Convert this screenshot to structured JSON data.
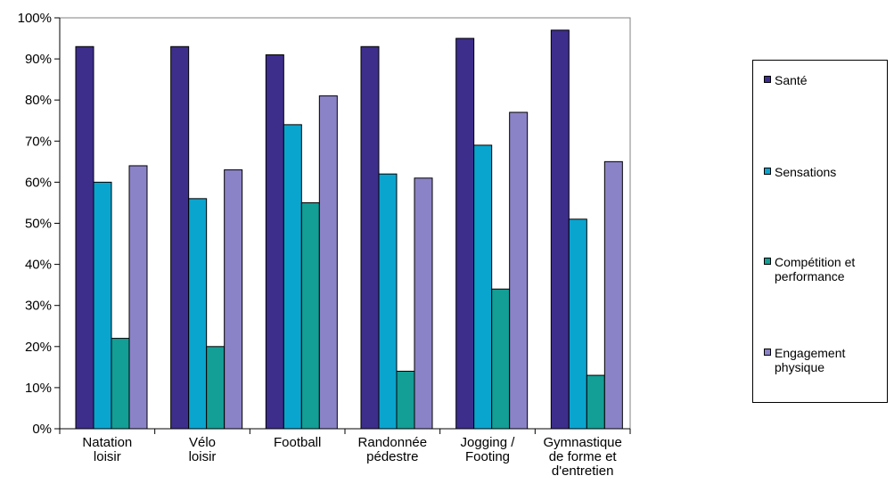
{
  "chart_data": {
    "type": "bar",
    "categories": [
      [
        "Natation",
        "loisir"
      ],
      [
        "Vélo",
        "loisir"
      ],
      [
        "Football"
      ],
      [
        "Randonnée",
        "pédestre"
      ],
      [
        "Jogging /",
        "Footing"
      ],
      [
        "Gymnastique",
        "de forme et",
        "d'entretien"
      ]
    ],
    "series": [
      {
        "name": "Santé",
        "color": "#3d2e8c",
        "values": [
          93,
          93,
          91,
          93,
          95,
          97
        ]
      },
      {
        "name": "Sensations",
        "color": "#0aa5cf",
        "values": [
          60,
          56,
          74,
          62,
          69,
          51
        ]
      },
      {
        "name": "Compétition et\nperformance",
        "color": "#139e96",
        "values": [
          22,
          20,
          55,
          14,
          34,
          13
        ]
      },
      {
        "name": "Engagement\nphysique",
        "color": "#8b83c7",
        "values": [
          64,
          63,
          81,
          61,
          77,
          65
        ]
      }
    ],
    "ylim": [
      0,
      100
    ],
    "yticks": [
      "0%",
      "10%",
      "20%",
      "30%",
      "40%",
      "50%",
      "60%",
      "70%",
      "80%",
      "90%",
      "100%"
    ],
    "grid": false,
    "legend_position": "right"
  }
}
